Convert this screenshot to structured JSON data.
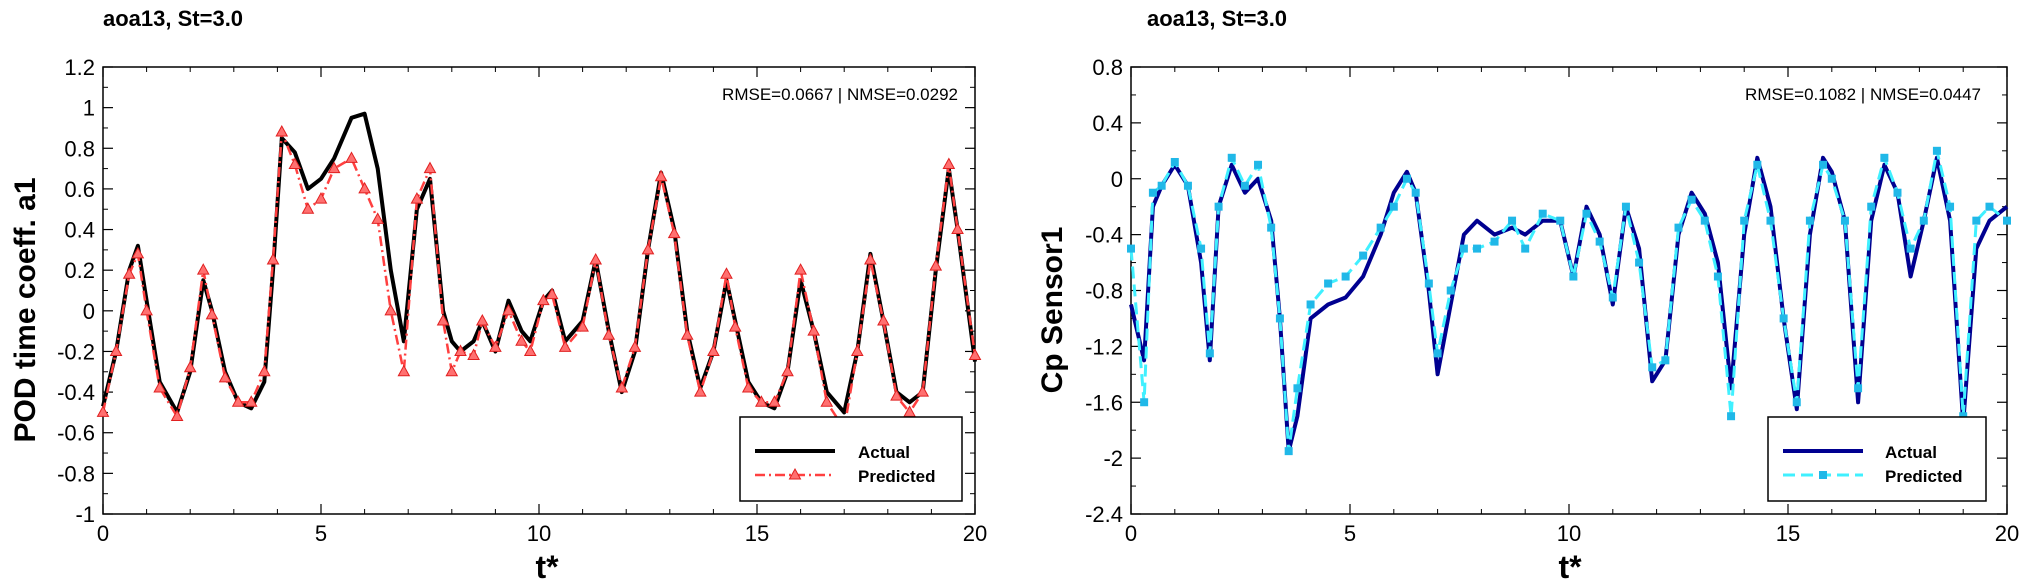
{
  "chart_data": [
    {
      "type": "line",
      "title": "aoa13, St=3.0",
      "xlabel": "t*",
      "ylabel": "POD time coeff. a1",
      "xlim": [
        0,
        20
      ],
      "ylim": [
        -1,
        1.2
      ],
      "xticks": [
        "0",
        "5",
        "10",
        "15",
        "20"
      ],
      "yticks": [
        "-1",
        "-0.8",
        "-0.6",
        "-0.4",
        "-0.2",
        "0",
        "0.2",
        "0.4",
        "0.6",
        "0.8",
        "1",
        "1.2"
      ],
      "annotation": "RMSE=0.0667 | NMSE=0.0292",
      "legend_position": "bottom-right",
      "series": [
        {
          "name": "Actual",
          "color": "#000000",
          "style": "solid",
          "x": [
            0,
            0.3,
            0.6,
            0.8,
            1.0,
            1.3,
            1.7,
            2.0,
            2.3,
            2.5,
            2.8,
            3.1,
            3.4,
            3.7,
            3.9,
            4.1,
            4.4,
            4.7,
            5.0,
            5.3,
            5.7,
            6.0,
            6.3,
            6.6,
            6.9,
            7.2,
            7.5,
            7.8,
            8.0,
            8.2,
            8.5,
            8.7,
            9.0,
            9.3,
            9.6,
            9.8,
            10.1,
            10.3,
            10.6,
            11.0,
            11.3,
            11.6,
            11.9,
            12.2,
            12.5,
            12.8,
            13.1,
            13.4,
            13.7,
            14.0,
            14.3,
            14.5,
            14.8,
            15.1,
            15.4,
            15.7,
            16.0,
            16.3,
            16.6,
            17.0,
            17.3,
            17.6,
            17.9,
            18.2,
            18.5,
            18.8,
            19.1,
            19.4,
            19.6,
            20.0
          ],
          "y": [
            -0.47,
            -0.2,
            0.2,
            0.32,
            0.05,
            -0.35,
            -0.5,
            -0.3,
            0.15,
            0.0,
            -0.3,
            -0.45,
            -0.48,
            -0.35,
            0.2,
            0.85,
            0.78,
            0.6,
            0.65,
            0.75,
            0.95,
            0.97,
            0.7,
            0.2,
            -0.15,
            0.5,
            0.65,
            0.0,
            -0.15,
            -0.2,
            -0.15,
            -0.05,
            -0.2,
            0.05,
            -0.1,
            -0.15,
            0.05,
            0.1,
            -0.15,
            -0.05,
            0.25,
            -0.1,
            -0.4,
            -0.2,
            0.3,
            0.68,
            0.4,
            -0.1,
            -0.38,
            -0.2,
            0.15,
            -0.05,
            -0.35,
            -0.45,
            -0.48,
            -0.3,
            0.15,
            -0.1,
            -0.4,
            -0.5,
            -0.2,
            0.28,
            -0.05,
            -0.4,
            -0.45,
            -0.4,
            0.2,
            0.7,
            0.4,
            -0.25
          ]
        },
        {
          "name": "Predicted",
          "color": "#ff4040",
          "style": "dash-dot",
          "marker": "triangle",
          "x": [
            0,
            0.3,
            0.6,
            0.8,
            1.0,
            1.3,
            1.7,
            2.0,
            2.3,
            2.5,
            2.8,
            3.1,
            3.4,
            3.7,
            3.9,
            4.1,
            4.4,
            4.7,
            5.0,
            5.3,
            5.7,
            6.0,
            6.3,
            6.6,
            6.9,
            7.2,
            7.5,
            7.8,
            8.0,
            8.2,
            8.5,
            8.7,
            9.0,
            9.3,
            9.6,
            9.8,
            10.1,
            10.3,
            10.6,
            11.0,
            11.3,
            11.6,
            11.9,
            12.2,
            12.5,
            12.8,
            13.1,
            13.4,
            13.7,
            14.0,
            14.3,
            14.5,
            14.8,
            15.1,
            15.4,
            15.7,
            16.0,
            16.3,
            16.6,
            17.0,
            17.3,
            17.6,
            17.9,
            18.2,
            18.5,
            18.8,
            19.1,
            19.4,
            19.6,
            20.0
          ],
          "y": [
            -0.5,
            -0.2,
            0.18,
            0.28,
            0.0,
            -0.38,
            -0.52,
            -0.28,
            0.2,
            -0.02,
            -0.33,
            -0.45,
            -0.45,
            -0.3,
            0.25,
            0.88,
            0.72,
            0.5,
            0.55,
            0.7,
            0.75,
            0.6,
            0.45,
            0.0,
            -0.3,
            0.55,
            0.7,
            -0.05,
            -0.3,
            -0.2,
            -0.22,
            -0.05,
            -0.18,
            0.0,
            -0.15,
            -0.2,
            0.05,
            0.08,
            -0.18,
            -0.08,
            0.25,
            -0.12,
            -0.38,
            -0.18,
            0.3,
            0.66,
            0.38,
            -0.12,
            -0.4,
            -0.2,
            0.18,
            -0.08,
            -0.38,
            -0.45,
            -0.45,
            -0.3,
            0.2,
            -0.1,
            -0.45,
            -0.58,
            -0.2,
            0.25,
            -0.05,
            -0.42,
            -0.5,
            -0.4,
            0.22,
            0.72,
            0.4,
            -0.22
          ]
        }
      ]
    },
    {
      "type": "line",
      "title": "aoa13, St=3.0",
      "xlabel": "t*",
      "ylabel": "Cp Sensor1",
      "xlim": [
        0,
        20
      ],
      "ylim": [
        -2.4,
        0.8
      ],
      "xticks": [
        "0",
        "5",
        "10",
        "15",
        "20"
      ],
      "yticks": [
        "-2.4",
        "-2",
        "-1.6",
        "-1.2",
        "-0.8",
        "-0.4",
        "0",
        "0.4",
        "0.8"
      ],
      "annotation": "RMSE=0.1082 | NMSE=0.0447",
      "legend_position": "bottom-right",
      "series": [
        {
          "name": "Actual",
          "color": "#000090",
          "style": "solid",
          "x": [
            0,
            0.3,
            0.5,
            0.7,
            1.0,
            1.3,
            1.6,
            1.8,
            2.0,
            2.3,
            2.6,
            2.9,
            3.2,
            3.4,
            3.6,
            3.8,
            4.1,
            4.5,
            4.9,
            5.3,
            5.7,
            6.0,
            6.3,
            6.5,
            6.8,
            7.0,
            7.3,
            7.6,
            7.9,
            8.3,
            8.7,
            9.0,
            9.4,
            9.8,
            10.1,
            10.4,
            10.7,
            11.0,
            11.3,
            11.6,
            11.9,
            12.2,
            12.5,
            12.8,
            13.1,
            13.4,
            13.7,
            14.0,
            14.3,
            14.6,
            14.9,
            15.2,
            15.5,
            15.8,
            16.0,
            16.3,
            16.6,
            16.9,
            17.2,
            17.5,
            17.8,
            18.1,
            18.4,
            18.7,
            19.0,
            19.3,
            19.6,
            20.0
          ],
          "y": [
            -0.9,
            -1.3,
            -0.2,
            -0.05,
            0.1,
            -0.05,
            -0.6,
            -1.3,
            -0.2,
            0.1,
            -0.1,
            0.0,
            -0.3,
            -1.0,
            -1.95,
            -1.7,
            -1.0,
            -0.9,
            -0.85,
            -0.7,
            -0.4,
            -0.1,
            0.05,
            -0.1,
            -0.8,
            -1.4,
            -0.9,
            -0.4,
            -0.3,
            -0.4,
            -0.35,
            -0.4,
            -0.3,
            -0.3,
            -0.7,
            -0.2,
            -0.4,
            -0.9,
            -0.2,
            -0.5,
            -1.45,
            -1.3,
            -0.4,
            -0.1,
            -0.25,
            -0.6,
            -1.5,
            -0.4,
            0.15,
            -0.2,
            -1.0,
            -1.65,
            -0.4,
            0.15,
            0.05,
            -0.3,
            -1.6,
            -0.3,
            0.1,
            -0.1,
            -0.7,
            -0.3,
            0.15,
            -0.3,
            -1.75,
            -0.5,
            -0.3,
            -0.2
          ]
        },
        {
          "name": "Predicted",
          "color": "#40f0ff",
          "style": "dashed",
          "marker": "square",
          "x": [
            0,
            0.3,
            0.5,
            0.7,
            1.0,
            1.3,
            1.6,
            1.8,
            2.0,
            2.3,
            2.6,
            2.9,
            3.2,
            3.4,
            3.6,
            3.8,
            4.1,
            4.5,
            4.9,
            5.3,
            5.7,
            6.0,
            6.3,
            6.5,
            6.8,
            7.0,
            7.3,
            7.6,
            7.9,
            8.3,
            8.7,
            9.0,
            9.4,
            9.8,
            10.1,
            10.4,
            10.7,
            11.0,
            11.3,
            11.6,
            11.9,
            12.2,
            12.5,
            12.8,
            13.1,
            13.4,
            13.7,
            14.0,
            14.3,
            14.6,
            14.9,
            15.2,
            15.5,
            15.8,
            16.0,
            16.3,
            16.6,
            16.9,
            17.2,
            17.5,
            17.8,
            18.1,
            18.4,
            18.7,
            19.0,
            19.3,
            19.6,
            20.0
          ],
          "y": [
            -0.5,
            -1.6,
            -0.1,
            -0.05,
            0.12,
            -0.05,
            -0.5,
            -1.25,
            -0.2,
            0.15,
            -0.05,
            0.1,
            -0.35,
            -1.0,
            -1.95,
            -1.5,
            -0.9,
            -0.75,
            -0.7,
            -0.55,
            -0.35,
            -0.2,
            0.0,
            -0.1,
            -0.75,
            -1.25,
            -0.8,
            -0.5,
            -0.5,
            -0.45,
            -0.3,
            -0.5,
            -0.25,
            -0.3,
            -0.7,
            -0.25,
            -0.45,
            -0.85,
            -0.2,
            -0.6,
            -1.35,
            -1.3,
            -0.35,
            -0.15,
            -0.3,
            -0.7,
            -1.7,
            -0.3,
            0.1,
            -0.3,
            -1.0,
            -1.6,
            -0.3,
            0.1,
            0.0,
            -0.3,
            -1.5,
            -0.2,
            0.15,
            -0.1,
            -0.5,
            -0.3,
            0.2,
            -0.2,
            -1.7,
            -0.3,
            -0.2,
            -0.3
          ]
        }
      ]
    }
  ]
}
